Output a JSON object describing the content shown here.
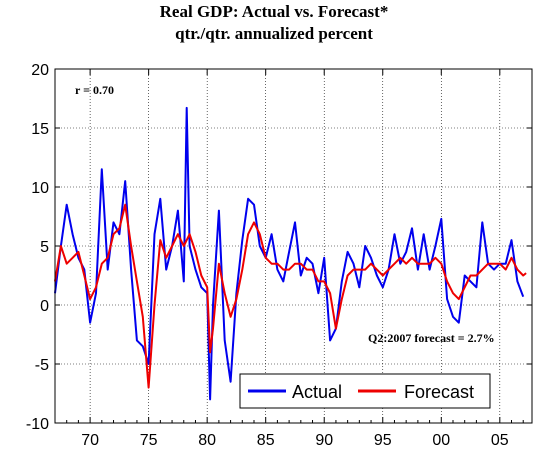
{
  "chart_data": {
    "type": "line",
    "title": "Real GDP: Actual vs. Forecast*",
    "subtitle": "qtr./qtr. annualized percent",
    "xlabel": "",
    "ylabel": "",
    "xlim": [
      1967.0,
      2007.75
    ],
    "ylim": [
      -10,
      20
    ],
    "yticks": [
      -10,
      -5,
      0,
      5,
      10,
      15,
      20
    ],
    "ytick_labels": [
      "-10",
      "-5",
      "0",
      "5",
      "10",
      "15",
      "20"
    ],
    "xticks": [
      1970,
      1975,
      1980,
      1985,
      1990,
      1995,
      2000,
      2005
    ],
    "xtick_labels": [
      "70",
      "75",
      "80",
      "85",
      "90",
      "95",
      "00",
      "05"
    ],
    "grid": "dotted",
    "legend_position": "bottom-right",
    "annotations": [
      "r = 0.70",
      "Q2:2007 forecast = 2.7%"
    ],
    "series": [
      {
        "name": "Actual",
        "color": "#0000ee",
        "points": [
          [
            1967.0,
            1.0
          ],
          [
            1967.5,
            5.0
          ],
          [
            1968.0,
            8.5
          ],
          [
            1968.5,
            6.0
          ],
          [
            1969.0,
            4.0
          ],
          [
            1969.5,
            3.0
          ],
          [
            1970.0,
            -1.5
          ],
          [
            1970.5,
            1.0
          ],
          [
            1971.0,
            11.5
          ],
          [
            1971.5,
            3.0
          ],
          [
            1972.0,
            7.0
          ],
          [
            1972.5,
            6.0
          ],
          [
            1973.0,
            10.5
          ],
          [
            1973.5,
            3.0
          ],
          [
            1974.0,
            -3.0
          ],
          [
            1974.5,
            -3.5
          ],
          [
            1975.0,
            -5.0
          ],
          [
            1975.5,
            6.0
          ],
          [
            1976.0,
            9.0
          ],
          [
            1976.5,
            3.0
          ],
          [
            1977.0,
            5.0
          ],
          [
            1977.5,
            8.0
          ],
          [
            1978.0,
            2.0
          ],
          [
            1978.25,
            16.7
          ],
          [
            1978.5,
            5.0
          ],
          [
            1979.0,
            3.0
          ],
          [
            1979.5,
            1.5
          ],
          [
            1980.0,
            1.0
          ],
          [
            1980.25,
            -8.0
          ],
          [
            1980.5,
            0.0
          ],
          [
            1981.0,
            8.0
          ],
          [
            1981.5,
            -3.0
          ],
          [
            1982.0,
            -6.5
          ],
          [
            1982.5,
            1.0
          ],
          [
            1983.0,
            5.5
          ],
          [
            1983.5,
            9.0
          ],
          [
            1984.0,
            8.5
          ],
          [
            1984.5,
            5.0
          ],
          [
            1985.0,
            4.0
          ],
          [
            1985.5,
            6.0
          ],
          [
            1986.0,
            3.0
          ],
          [
            1986.5,
            2.0
          ],
          [
            1987.0,
            4.5
          ],
          [
            1987.5,
            7.0
          ],
          [
            1988.0,
            2.5
          ],
          [
            1988.5,
            4.0
          ],
          [
            1989.0,
            3.5
          ],
          [
            1989.5,
            1.0
          ],
          [
            1990.0,
            4.0
          ],
          [
            1990.5,
            -3.0
          ],
          [
            1991.0,
            -2.0
          ],
          [
            1991.5,
            2.0
          ],
          [
            1992.0,
            4.5
          ],
          [
            1992.5,
            3.5
          ],
          [
            1993.0,
            1.5
          ],
          [
            1993.5,
            5.0
          ],
          [
            1994.0,
            4.0
          ],
          [
            1994.5,
            2.5
          ],
          [
            1995.0,
            1.5
          ],
          [
            1995.5,
            3.0
          ],
          [
            1996.0,
            6.0
          ],
          [
            1996.5,
            3.5
          ],
          [
            1997.0,
            4.5
          ],
          [
            1997.5,
            6.5
          ],
          [
            1998.0,
            3.0
          ],
          [
            1998.5,
            6.0
          ],
          [
            1999.0,
            3.0
          ],
          [
            1999.5,
            5.0
          ],
          [
            2000.0,
            7.3
          ],
          [
            2000.5,
            0.5
          ],
          [
            2001.0,
            -1.0
          ],
          [
            2001.5,
            -1.5
          ],
          [
            2002.0,
            2.5
          ],
          [
            2002.5,
            2.0
          ],
          [
            2003.0,
            1.5
          ],
          [
            2003.5,
            7.0
          ],
          [
            2004.0,
            3.5
          ],
          [
            2004.5,
            3.0
          ],
          [
            2005.0,
            3.5
          ],
          [
            2005.5,
            3.5
          ],
          [
            2006.0,
            5.5
          ],
          [
            2006.5,
            2.0
          ],
          [
            2007.0,
            0.7
          ]
        ]
      },
      {
        "name": "Forecast",
        "color": "#ee0000",
        "points": [
          [
            1967.0,
            2.0
          ],
          [
            1967.5,
            5.0
          ],
          [
            1968.0,
            3.5
          ],
          [
            1968.5,
            4.0
          ],
          [
            1969.0,
            4.5
          ],
          [
            1969.5,
            2.5
          ],
          [
            1970.0,
            0.5
          ],
          [
            1970.5,
            1.5
          ],
          [
            1971.0,
            3.5
          ],
          [
            1971.5,
            4.0
          ],
          [
            1972.0,
            6.0
          ],
          [
            1972.5,
            6.5
          ],
          [
            1973.0,
            8.5
          ],
          [
            1973.5,
            5.0
          ],
          [
            1974.0,
            2.0
          ],
          [
            1974.5,
            -1.0
          ],
          [
            1975.0,
            -7.0
          ],
          [
            1975.5,
            0.0
          ],
          [
            1976.0,
            5.5
          ],
          [
            1976.5,
            4.0
          ],
          [
            1977.0,
            5.0
          ],
          [
            1977.5,
            6.0
          ],
          [
            1978.0,
            5.0
          ],
          [
            1978.5,
            6.0
          ],
          [
            1979.0,
            4.5
          ],
          [
            1979.5,
            2.5
          ],
          [
            1980.0,
            1.5
          ],
          [
            1980.25,
            -4.0
          ],
          [
            1980.5,
            -2.0
          ],
          [
            1981.0,
            3.5
          ],
          [
            1981.5,
            1.0
          ],
          [
            1982.0,
            -1.0
          ],
          [
            1982.5,
            0.5
          ],
          [
            1983.0,
            3.0
          ],
          [
            1983.5,
            6.0
          ],
          [
            1984.0,
            7.0
          ],
          [
            1984.5,
            6.0
          ],
          [
            1985.0,
            4.0
          ],
          [
            1985.5,
            3.5
          ],
          [
            1986.0,
            3.5
          ],
          [
            1986.5,
            3.0
          ],
          [
            1987.0,
            3.0
          ],
          [
            1987.5,
            3.5
          ],
          [
            1988.0,
            3.5
          ],
          [
            1988.5,
            3.0
          ],
          [
            1989.0,
            3.0
          ],
          [
            1989.5,
            2.0
          ],
          [
            1990.0,
            2.0
          ],
          [
            1990.5,
            1.0
          ],
          [
            1991.0,
            -2.0
          ],
          [
            1991.5,
            0.5
          ],
          [
            1992.0,
            2.5
          ],
          [
            1992.5,
            3.0
          ],
          [
            1993.0,
            3.0
          ],
          [
            1993.5,
            3.0
          ],
          [
            1994.0,
            3.5
          ],
          [
            1994.5,
            3.0
          ],
          [
            1995.0,
            2.5
          ],
          [
            1995.5,
            3.0
          ],
          [
            1996.0,
            3.5
          ],
          [
            1996.5,
            4.0
          ],
          [
            1997.0,
            3.5
          ],
          [
            1997.5,
            4.0
          ],
          [
            1998.0,
            3.5
          ],
          [
            1998.5,
            3.5
          ],
          [
            1999.0,
            3.5
          ],
          [
            1999.5,
            4.0
          ],
          [
            2000.0,
            3.5
          ],
          [
            2000.5,
            2.0
          ],
          [
            2001.0,
            1.0
          ],
          [
            2001.5,
            0.5
          ],
          [
            2002.0,
            1.5
          ],
          [
            2002.5,
            2.5
          ],
          [
            2003.0,
            2.5
          ],
          [
            2003.5,
            3.0
          ],
          [
            2004.0,
            3.5
          ],
          [
            2004.5,
            3.5
          ],
          [
            2005.0,
            3.5
          ],
          [
            2005.5,
            3.0
          ],
          [
            2006.0,
            4.0
          ],
          [
            2006.5,
            3.0
          ],
          [
            2007.0,
            2.5
          ],
          [
            2007.25,
            2.7
          ]
        ]
      }
    ]
  }
}
